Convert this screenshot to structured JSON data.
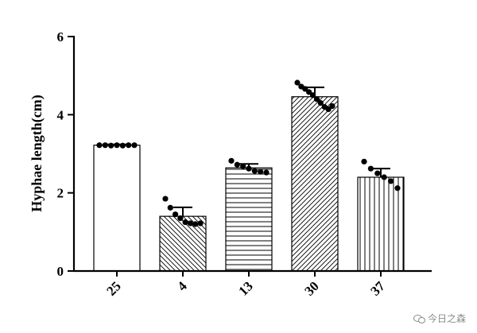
{
  "chart_data": {
    "type": "bar",
    "title": "",
    "xlabel": "",
    "ylabel": "Hyphae length(cm)",
    "ylim": [
      0,
      6
    ],
    "yticks": [
      0,
      2,
      4,
      6
    ],
    "grid": false,
    "categories": [
      "25",
      "4",
      "13",
      "30",
      "37"
    ],
    "values": [
      3.22,
      1.4,
      2.64,
      4.46,
      2.4
    ],
    "error": [
      0.02,
      0.23,
      0.1,
      0.24,
      0.22
    ],
    "patterns": [
      "none",
      "diagonal-down",
      "horizontal",
      "diagonal-up",
      "vertical"
    ],
    "points": [
      [
        3.22,
        3.22,
        3.21,
        3.22,
        3.21,
        3.22,
        3.22
      ],
      [
        1.85,
        1.62,
        1.45,
        1.35,
        1.25,
        1.22,
        1.2,
        1.22
      ],
      [
        2.82,
        2.72,
        2.68,
        2.62,
        2.56,
        2.54,
        2.52
      ],
      [
        4.82,
        4.72,
        4.66,
        4.58,
        4.5,
        4.4,
        4.3,
        4.2,
        4.14,
        4.22
      ],
      [
        2.8,
        2.62,
        2.5,
        2.4,
        2.3,
        2.12
      ]
    ]
  },
  "watermark": {
    "text": "今日之森",
    "icon": "wechat-icon"
  }
}
